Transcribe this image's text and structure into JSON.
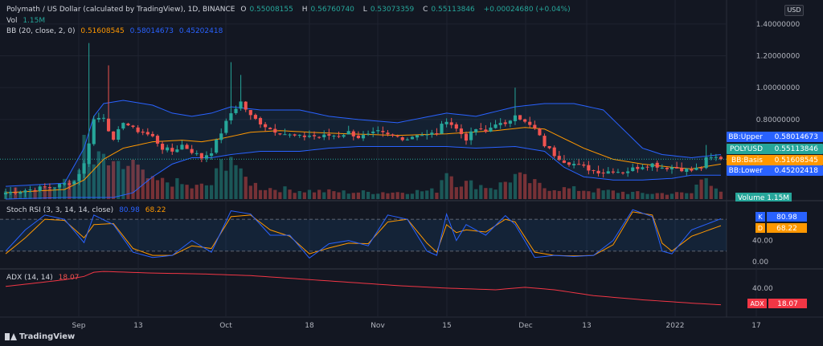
{
  "header": {
    "title": "Polymath / US Dollar (calculated by TradingView), 1D, BINANCE",
    "open_label": "O",
    "open": "0.55008155",
    "high_label": "H",
    "high": "0.56760740",
    "low_label": "L",
    "low": "0.53073359",
    "close_label": "C",
    "close": "0.55113846",
    "change": "+0.00024680 (+0.04%)"
  },
  "legend_vol": {
    "label": "Vol",
    "value": "1.15M"
  },
  "legend_bb": {
    "label": "BB (20, close, 2, 0)",
    "basis": "0.51608545",
    "upper": "0.58014673",
    "lower": "0.45202418"
  },
  "legend_stoch": {
    "label": "Stoch RSI (3, 3, 14, 14, close)",
    "k": "80.98",
    "d": "68.22"
  },
  "legend_adx": {
    "label": "ADX (14, 14)",
    "value": "18.07"
  },
  "currency_button": "USD",
  "brand": "TradingView",
  "colors": {
    "background": "#131722",
    "up": "#26a69a",
    "down": "#ef5350",
    "bb_band": "#2962ff",
    "bb_basis": "#ff9800",
    "stoch_k": "#2962ff",
    "stoch_d": "#ff9800",
    "adx": "#f23645",
    "grid": "#1f2330"
  },
  "chart_data": {
    "type": "candlestick",
    "x_labels": [
      "Sep",
      "13",
      "Oct",
      "18",
      "Nov",
      "15",
      "Dec",
      "13",
      "2022",
      "17"
    ],
    "price_axis": {
      "ticks": [
        "1.40000000",
        "1.20000000",
        "1.00000000",
        "0.80000000"
      ],
      "min": 0.3,
      "max": 1.48
    },
    "price_labels": [
      {
        "name": "BB:Upper",
        "value": "0.58014673",
        "price": 0.58014673,
        "color": "#2962ff"
      },
      {
        "name": "POLYUSD",
        "value": "0.55113846",
        "price": 0.55113846,
        "color": "#26a69a"
      },
      {
        "name": "BB:Basis",
        "value": "0.51608545",
        "price": 0.51608545,
        "color": "#ff9800"
      },
      {
        "name": "BB:Lower",
        "value": "0.45202418",
        "price": 0.45202418,
        "color": "#2962ff"
      }
    ],
    "volume_label": {
      "name": "Volume",
      "value": "1.15M"
    },
    "stoch_axis": {
      "ticks": [
        "40.00",
        "0.00"
      ],
      "min": -12,
      "max": 112,
      "bands": [
        20,
        80
      ]
    },
    "stoch_labels": [
      {
        "name": "K",
        "value": "80.98",
        "color": "#2962ff"
      },
      {
        "name": "D",
        "value": "68.22",
        "color": "#ff9800"
      }
    ],
    "adx_axis": {
      "ticks": [
        "40.00"
      ]
    },
    "adx_label": {
      "name": "ADX",
      "value": "18.07",
      "color": "#f23645"
    },
    "close_anchors": [
      [
        0,
        0.34
      ],
      [
        5,
        0.36
      ],
      [
        10,
        0.38
      ],
      [
        14,
        0.41
      ],
      [
        16,
        0.52
      ],
      [
        18,
        0.8
      ],
      [
        20,
        0.82
      ],
      [
        22,
        0.66
      ],
      [
        24,
        0.79
      ],
      [
        26,
        0.74
      ],
      [
        28,
        0.72
      ],
      [
        30,
        0.69
      ],
      [
        32,
        0.62
      ],
      [
        34,
        0.6
      ],
      [
        36,
        0.64
      ],
      [
        38,
        0.6
      ],
      [
        40,
        0.56
      ],
      [
        42,
        0.6
      ],
      [
        44,
        0.72
      ],
      [
        46,
        0.84
      ],
      [
        48,
        0.91
      ],
      [
        50,
        0.82
      ],
      [
        52,
        0.78
      ],
      [
        54,
        0.74
      ],
      [
        56,
        0.72
      ],
      [
        58,
        0.7
      ],
      [
        60,
        0.69
      ],
      [
        62,
        0.7
      ],
      [
        64,
        0.69
      ],
      [
        66,
        0.7
      ],
      [
        68,
        0.7
      ],
      [
        70,
        0.72
      ],
      [
        72,
        0.69
      ],
      [
        74,
        0.7
      ],
      [
        76,
        0.72
      ],
      [
        78,
        0.7
      ],
      [
        80,
        0.69
      ],
      [
        82,
        0.68
      ],
      [
        84,
        0.71
      ],
      [
        86,
        0.7
      ],
      [
        88,
        0.72
      ],
      [
        90,
        0.8
      ],
      [
        92,
        0.74
      ],
      [
        94,
        0.68
      ],
      [
        96,
        0.74
      ],
      [
        98,
        0.72
      ],
      [
        100,
        0.78
      ],
      [
        102,
        0.76
      ],
      [
        104,
        0.84
      ],
      [
        106,
        0.78
      ],
      [
        108,
        0.74
      ],
      [
        110,
        0.64
      ],
      [
        112,
        0.58
      ],
      [
        114,
        0.54
      ],
      [
        116,
        0.52
      ],
      [
        118,
        0.5
      ],
      [
        120,
        0.48
      ],
      [
        122,
        0.47
      ],
      [
        124,
        0.48
      ],
      [
        126,
        0.47
      ],
      [
        128,
        0.49
      ],
      [
        130,
        0.51
      ],
      [
        132,
        0.52
      ],
      [
        134,
        0.5
      ],
      [
        136,
        0.5
      ],
      [
        138,
        0.49
      ],
      [
        140,
        0.48
      ],
      [
        142,
        0.5
      ],
      [
        143,
        0.55
      ],
      [
        145,
        0.56
      ],
      [
        146,
        0.551
      ]
    ],
    "bb_upper_anchors": [
      [
        0,
        0.38
      ],
      [
        12,
        0.4
      ],
      [
        16,
        0.62
      ],
      [
        18,
        0.82
      ],
      [
        20,
        0.9
      ],
      [
        24,
        0.92
      ],
      [
        30,
        0.89
      ],
      [
        34,
        0.84
      ],
      [
        38,
        0.82
      ],
      [
        42,
        0.84
      ],
      [
        46,
        0.88
      ],
      [
        52,
        0.86
      ],
      [
        60,
        0.86
      ],
      [
        66,
        0.82
      ],
      [
        72,
        0.8
      ],
      [
        80,
        0.78
      ],
      [
        90,
        0.84
      ],
      [
        96,
        0.82
      ],
      [
        104,
        0.88
      ],
      [
        110,
        0.9
      ],
      [
        116,
        0.9
      ],
      [
        122,
        0.86
      ],
      [
        126,
        0.74
      ],
      [
        130,
        0.62
      ],
      [
        134,
        0.58
      ],
      [
        140,
        0.56
      ],
      [
        146,
        0.58
      ]
    ],
    "bb_lower_anchors": [
      [
        0,
        0.3
      ],
      [
        12,
        0.31
      ],
      [
        16,
        0.31
      ],
      [
        22,
        0.31
      ],
      [
        26,
        0.34
      ],
      [
        30,
        0.44
      ],
      [
        34,
        0.52
      ],
      [
        38,
        0.56
      ],
      [
        42,
        0.56
      ],
      [
        46,
        0.58
      ],
      [
        52,
        0.6
      ],
      [
        60,
        0.6
      ],
      [
        66,
        0.62
      ],
      [
        72,
        0.63
      ],
      [
        80,
        0.63
      ],
      [
        90,
        0.63
      ],
      [
        96,
        0.62
      ],
      [
        104,
        0.63
      ],
      [
        110,
        0.6
      ],
      [
        114,
        0.5
      ],
      [
        118,
        0.44
      ],
      [
        124,
        0.42
      ],
      [
        130,
        0.42
      ],
      [
        136,
        0.43
      ],
      [
        140,
        0.45
      ],
      [
        146,
        0.45
      ]
    ],
    "bb_basis_anchors": [
      [
        0,
        0.34
      ],
      [
        12,
        0.36
      ],
      [
        16,
        0.42
      ],
      [
        20,
        0.55
      ],
      [
        24,
        0.62
      ],
      [
        30,
        0.66
      ],
      [
        36,
        0.67
      ],
      [
        40,
        0.66
      ],
      [
        44,
        0.68
      ],
      [
        50,
        0.72
      ],
      [
        56,
        0.73
      ],
      [
        62,
        0.72
      ],
      [
        70,
        0.71
      ],
      [
        80,
        0.7
      ],
      [
        90,
        0.71
      ],
      [
        100,
        0.73
      ],
      [
        106,
        0.75
      ],
      [
        110,
        0.74
      ],
      [
        114,
        0.68
      ],
      [
        118,
        0.62
      ],
      [
        124,
        0.55
      ],
      [
        130,
        0.52
      ],
      [
        136,
        0.5
      ],
      [
        140,
        0.49
      ],
      [
        146,
        0.52
      ]
    ],
    "volume_anchors": [
      [
        0,
        0.15
      ],
      [
        10,
        0.2
      ],
      [
        14,
        0.35
      ],
      [
        16,
        1.0
      ],
      [
        17,
        0.8
      ],
      [
        18,
        0.6
      ],
      [
        20,
        0.7
      ],
      [
        22,
        0.5
      ],
      [
        26,
        0.6
      ],
      [
        28,
        0.4
      ],
      [
        30,
        0.3
      ],
      [
        34,
        0.3
      ],
      [
        38,
        0.2
      ],
      [
        42,
        0.25
      ],
      [
        44,
        0.6
      ],
      [
        46,
        0.8
      ],
      [
        48,
        0.4
      ],
      [
        52,
        0.2
      ],
      [
        60,
        0.15
      ],
      [
        70,
        0.12
      ],
      [
        80,
        0.12
      ],
      [
        88,
        0.15
      ],
      [
        90,
        0.55
      ],
      [
        92,
        0.3
      ],
      [
        100,
        0.2
      ],
      [
        104,
        0.4
      ],
      [
        110,
        0.2
      ],
      [
        120,
        0.15
      ],
      [
        130,
        0.1
      ],
      [
        140,
        0.1
      ],
      [
        143,
        0.5
      ],
      [
        144,
        0.3
      ],
      [
        146,
        0.1
      ]
    ],
    "stoch_k_anchors": [
      [
        0,
        20
      ],
      [
        4,
        60
      ],
      [
        8,
        88
      ],
      [
        12,
        80
      ],
      [
        16,
        36
      ],
      [
        18,
        88
      ],
      [
        22,
        70
      ],
      [
        26,
        18
      ],
      [
        30,
        8
      ],
      [
        34,
        12
      ],
      [
        38,
        40
      ],
      [
        42,
        18
      ],
      [
        46,
        96
      ],
      [
        50,
        90
      ],
      [
        54,
        50
      ],
      [
        58,
        50
      ],
      [
        62,
        7
      ],
      [
        66,
        34
      ],
      [
        70,
        40
      ],
      [
        74,
        30
      ],
      [
        78,
        88
      ],
      [
        82,
        80
      ],
      [
        86,
        20
      ],
      [
        88,
        12
      ],
      [
        90,
        90
      ],
      [
        92,
        40
      ],
      [
        94,
        70
      ],
      [
        98,
        50
      ],
      [
        102,
        87
      ],
      [
        104,
        70
      ],
      [
        108,
        8
      ],
      [
        112,
        12
      ],
      [
        116,
        10
      ],
      [
        120,
        12
      ],
      [
        124,
        40
      ],
      [
        128,
        98
      ],
      [
        132,
        85
      ],
      [
        134,
        20
      ],
      [
        136,
        15
      ],
      [
        140,
        60
      ],
      [
        146,
        81
      ]
    ],
    "stoch_d_anchors": [
      [
        0,
        15
      ],
      [
        4,
        45
      ],
      [
        8,
        80
      ],
      [
        12,
        78
      ],
      [
        16,
        45
      ],
      [
        18,
        70
      ],
      [
        22,
        72
      ],
      [
        26,
        25
      ],
      [
        30,
        12
      ],
      [
        34,
        12
      ],
      [
        38,
        30
      ],
      [
        42,
        25
      ],
      [
        46,
        85
      ],
      [
        50,
        88
      ],
      [
        54,
        60
      ],
      [
        58,
        48
      ],
      [
        62,
        15
      ],
      [
        66,
        26
      ],
      [
        70,
        35
      ],
      [
        74,
        34
      ],
      [
        78,
        75
      ],
      [
        82,
        80
      ],
      [
        86,
        35
      ],
      [
        88,
        18
      ],
      [
        90,
        70
      ],
      [
        92,
        55
      ],
      [
        94,
        60
      ],
      [
        98,
        56
      ],
      [
        102,
        80
      ],
      [
        104,
        75
      ],
      [
        108,
        18
      ],
      [
        112,
        12
      ],
      [
        116,
        11
      ],
      [
        120,
        12
      ],
      [
        124,
        32
      ],
      [
        128,
        94
      ],
      [
        132,
        88
      ],
      [
        134,
        35
      ],
      [
        136,
        20
      ],
      [
        140,
        48
      ],
      [
        146,
        68
      ]
    ],
    "adx_anchors": [
      [
        0,
        40
      ],
      [
        6,
        44
      ],
      [
        12,
        48
      ],
      [
        16,
        52
      ],
      [
        18,
        57
      ],
      [
        20,
        58
      ],
      [
        30,
        56
      ],
      [
        40,
        55
      ],
      [
        50,
        53
      ],
      [
        60,
        49
      ],
      [
        70,
        45
      ],
      [
        80,
        41
      ],
      [
        90,
        38
      ],
      [
        100,
        36
      ],
      [
        106,
        39
      ],
      [
        112,
        36
      ],
      [
        120,
        29
      ],
      [
        130,
        24
      ],
      [
        140,
        20
      ],
      [
        146,
        18
      ]
    ]
  }
}
